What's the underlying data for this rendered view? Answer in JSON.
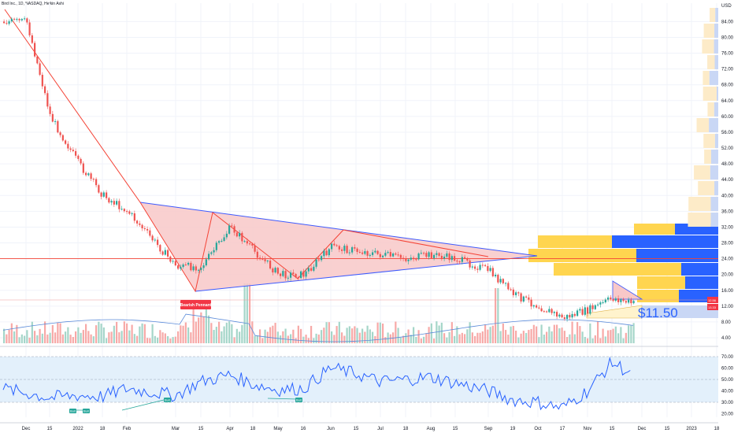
{
  "header": {
    "title": "Bird Inc., 1D, NASDAQ, Heikin Ashi"
  },
  "colors": {
    "up": "#26a69a",
    "down": "#ef5350",
    "triangle_fill": "#f8c8c8",
    "triangle_line": "#3d5afe",
    "trend_red": "#f44336",
    "rsi": "#2962ff",
    "rsi_band": "#e3f0fb",
    "vp_yellow": "#ffd54f",
    "vp_blue": "#2962ff",
    "vp_light_yellow": "#fdebc8",
    "vp_light_blue": "#c9d7f5"
  },
  "annotations": {
    "pattern_label": "Bearish Pennant",
    "target_price": "$11.50",
    "price_tags": [
      "12.56",
      "13.33"
    ],
    "rsi_badge": "Bull"
  },
  "chart_data": [
    {
      "type": "candlestick",
      "title": "Bird Inc., 1D, NASDAQ, Heikin Ashi",
      "y_axis_unit": "USD",
      "yticks": [
        "4.00",
        "8.00",
        "12.00",
        "16.00",
        "20.00",
        "24.00",
        "28.00",
        "32.00",
        "36.00",
        "40.00",
        "44.00",
        "48.00",
        "52.00",
        "56.00",
        "60.00",
        "64.00",
        "68.00",
        "72.00",
        "76.00",
        "80.00",
        "84.00"
      ],
      "xticks": [
        "Dec",
        "15",
        "2022",
        "18",
        "Feb",
        "Mar",
        "15",
        "Apr",
        "18",
        "May",
        "16",
        "Jun",
        "15",
        "Jul",
        "18",
        "Aug",
        "15",
        "Sep",
        "19",
        "Oct",
        "17",
        "Nov",
        "15",
        "Dec",
        "15",
        "2023",
        "18"
      ],
      "close_path": [
        [
          "Dec",
          84
        ],
        [
          "15",
          60
        ],
        [
          "2022",
          48
        ],
        [
          "18",
          40
        ],
        [
          "Feb",
          36
        ],
        [
          "Mar",
          22
        ],
        [
          "15",
          22
        ],
        [
          "Apr",
          32
        ],
        [
          "18",
          26
        ],
        [
          "May",
          20
        ],
        [
          "16",
          20
        ],
        [
          "Jun",
          27
        ],
        [
          "15",
          26
        ],
        [
          "Jul",
          25
        ],
        [
          "18",
          24
        ],
        [
          "Aug",
          25
        ],
        [
          "15",
          24
        ],
        [
          "Sep",
          21
        ],
        [
          "19",
          15
        ],
        [
          "Oct",
          12
        ],
        [
          "17",
          9
        ],
        [
          "Nov",
          11
        ],
        [
          "15",
          14
        ],
        [
          "Dec",
          12
        ]
      ],
      "horizontal_level": 24,
      "pattern": "Bearish Pennant",
      "target": 11.5,
      "last_prices": [
        12.56,
        13.33
      ]
    },
    {
      "type": "line",
      "title": "RSI",
      "yticks": [
        "20.00",
        "30.00",
        "40.00",
        "50.00",
        "60.00",
        "70.00"
      ],
      "band": [
        30,
        70
      ],
      "midline": 50,
      "series": [
        {
          "values": [
            [
              "Dec",
              38
            ],
            [
              "15",
              34
            ],
            [
              "2022",
              36
            ],
            [
              "18",
              35
            ],
            [
              "Feb",
              42
            ],
            [
              "Mar",
              36
            ],
            [
              "15",
              48
            ],
            [
              "Apr",
              54
            ],
            [
              "18",
              46
            ],
            [
              "May",
              41
            ],
            [
              "16",
              42
            ],
            [
              "Jun",
              60
            ],
            [
              "15",
              55
            ],
            [
              "Jul",
              48
            ],
            [
              "18",
              50
            ],
            [
              "Aug",
              52
            ],
            [
              "15",
              47
            ],
            [
              "Sep",
              40
            ],
            [
              "19",
              32
            ],
            [
              "Oct",
              30
            ],
            [
              "17",
              25
            ],
            [
              "Nov",
              40
            ],
            [
              "15",
              65
            ],
            [
              "Dec",
              50
            ]
          ]
        }
      ]
    }
  ]
}
